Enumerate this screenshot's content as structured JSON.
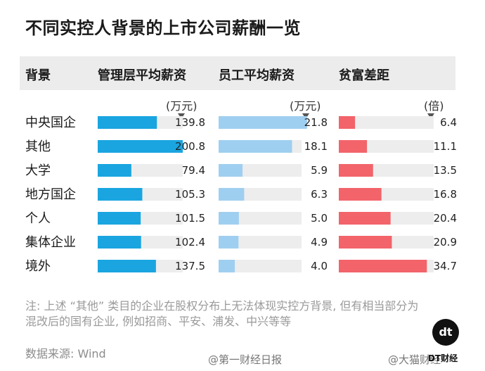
{
  "title": "不同实控人背景的上市公司薪酬一览",
  "headers": {
    "background": "背景",
    "mgmt": "管理层平均薪资",
    "staff": "员工平均薪资",
    "gap": "贫富差距"
  },
  "units": {
    "mgmt": "(万元)",
    "staff": "(万元)",
    "gap": "(倍)"
  },
  "note": "注: 上述 “其他” 类目的企业在股权分布上无法体现实控方背景, 但有相当部分为混改后的国有企业, 例如招商、平安、浦发、中兴等等",
  "source": "数据来源: Wind",
  "logo": "dt",
  "logo_text": "DT财经",
  "watermarks": {
    "left": "@第一财经日报",
    "right": "@大猫财经"
  },
  "colors": {
    "mgmt": "#1aa5e0",
    "staff": "#9fcff0",
    "gap": "#f2646a",
    "track": "#ededed"
  },
  "chart_data": {
    "type": "bar",
    "categories": [
      "中央国企",
      "其他",
      "大学",
      "地方国企",
      "个人",
      "集体企业",
      "境外"
    ],
    "series": [
      {
        "name": "管理层平均薪资",
        "values": [
          139.8,
          200.8,
          79.4,
          105.3,
          101.5,
          102.4,
          137.5
        ]
      },
      {
        "name": "员工平均薪资",
        "values": [
          21.8,
          18.1,
          5.9,
          6.3,
          5.0,
          4.9,
          4.0
        ]
      },
      {
        "name": "贫富差距",
        "values": [
          6.4,
          11.1,
          13.5,
          16.8,
          20.4,
          20.9,
          34.7
        ]
      }
    ],
    "value_labels": {
      "mgmt": [
        "139.8",
        "200.8",
        "79.4",
        "105.3",
        "101.5",
        "102.4",
        "137.5"
      ],
      "staff": [
        "21.8",
        "18.1",
        "5.9",
        "6.3",
        "5.0",
        "4.9",
        "4.0"
      ],
      "gap": [
        "6.4",
        "11.1",
        "13.5",
        "16.8",
        "20.4",
        "20.9",
        "34.7"
      ]
    },
    "xlim": [
      [
        0,
        200.8
      ],
      [
        0,
        26.5
      ],
      [
        0,
        36
      ]
    ]
  }
}
